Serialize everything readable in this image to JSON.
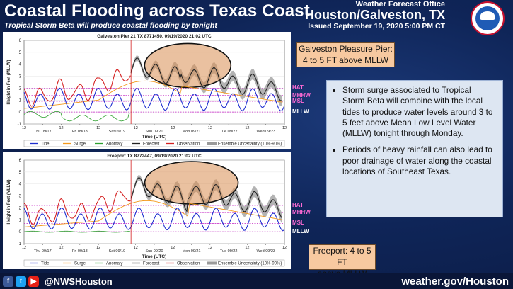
{
  "header": {
    "title": "Coastal Flooding across Texas Coast",
    "subtitle": "Tropical Storm Beta will produce coastal flooding by tonight",
    "office_line1": "Weather Forecast Office",
    "office_line2": "Houston/Galveston, TX",
    "issued": "Issued September 19, 2020 5:00 PM CT",
    "logo_icon": "noaa-nws-logo"
  },
  "chart_data": [
    {
      "type": "line",
      "title": "Galveston Pier 21 TX 8771450, 09/19/2020 21:02 UTC",
      "xlabel": "Time (UTC)",
      "ylabel": "Height in Feet (MLLW)",
      "ylim": [
        -1,
        6
      ],
      "yticks": [
        "-1",
        "0",
        "1",
        "2",
        "3",
        "4",
        "5",
        "6"
      ],
      "xticks": [
        "12",
        "Thu 09/17",
        "12",
        "Fri 09/18",
        "12",
        "Sat 09/19",
        "12",
        "Sun 09/20",
        "12",
        "Mon 09/21",
        "12",
        "Tue 09/22",
        "12",
        "Wed 09/23",
        "12"
      ],
      "datums": [
        {
          "name": "HAT",
          "value": 2.0
        },
        {
          "name": "MHHW",
          "value": 1.4
        },
        {
          "name": "MSL",
          "value": 0.9
        },
        {
          "name": "MLLW",
          "value": 0.0
        }
      ],
      "now_day": 2.875,
      "series": {
        "tide": {
          "desc": "blue",
          "mean": 1.0,
          "amp": 0.7
        },
        "observation": {
          "x_start": 0,
          "x_end": 2.875
        },
        "forecast": {
          "x_start": 2.875,
          "x_end": 6.95
        }
      },
      "legend": [
        "Tide",
        "Surge",
        "Anomaly",
        "Forecast",
        "Observation",
        "Ensemble Uncertainty (10%-90%)"
      ]
    },
    {
      "type": "line",
      "title": "Freeport TX 8772447, 09/19/2020 21:02 UTC",
      "xlabel": "Time (UTC)",
      "ylabel": "Height in Feet (MLLW)",
      "ylim": [
        -1,
        6
      ],
      "yticks": [
        "-1",
        "0",
        "1",
        "2",
        "3",
        "4",
        "5",
        "6"
      ],
      "xticks": [
        "12",
        "Thu 09/17",
        "12",
        "Fri 09/18",
        "12",
        "Sat 09/19",
        "12",
        "Sun 09/20",
        "12",
        "Mon 09/21",
        "12",
        "Tue 09/22",
        "12",
        "Wed 09/23",
        "12"
      ],
      "datums": [
        {
          "name": "HAT",
          "value": 2.2
        },
        {
          "name": "MHHW",
          "value": 1.6
        },
        {
          "name": "MSL",
          "value": 0.7
        },
        {
          "name": "MLLW",
          "value": 0.0
        }
      ],
      "now_day": 2.875,
      "legend": [
        "Tide",
        "Surge",
        "Anomaly",
        "Forecast",
        "Observation",
        "Ensemble Uncertainty (10%-90%)"
      ]
    }
  ],
  "callouts": {
    "galveston_line1": "Galveston Pleasure Pier:",
    "galveston_line2": "4 to 5 FT above MLLW",
    "freeport_line1": "Freeport: 4 to 5 FT",
    "freeport_line2": "above MLLW"
  },
  "bullets": [
    "Storm surge associated to Tropical Storm Beta will combine with the local tides to produce water levels around 3 to 5 feet above Mean Low Level Water (MLLW) tonight through Monday.",
    "Periods of heavy rainfall can also lead to poor drainage of water along the coastal locations of Southeast Texas."
  ],
  "footer": {
    "facebook_icon": "facebook-icon",
    "twitter_icon": "twitter-icon",
    "youtube_icon": "youtube-icon",
    "handle": "@NWSHouston",
    "website": "weather.gov/Houston"
  },
  "colors": {
    "tide": "#1f2fd0",
    "surge": "#f39a1e",
    "anomaly": "#2ea02e",
    "forecast": "#222222",
    "observation": "#d42020",
    "uncertainty": "#9a9a9a",
    "highlight": "#d98e52",
    "datum": "#c21ec2"
  }
}
